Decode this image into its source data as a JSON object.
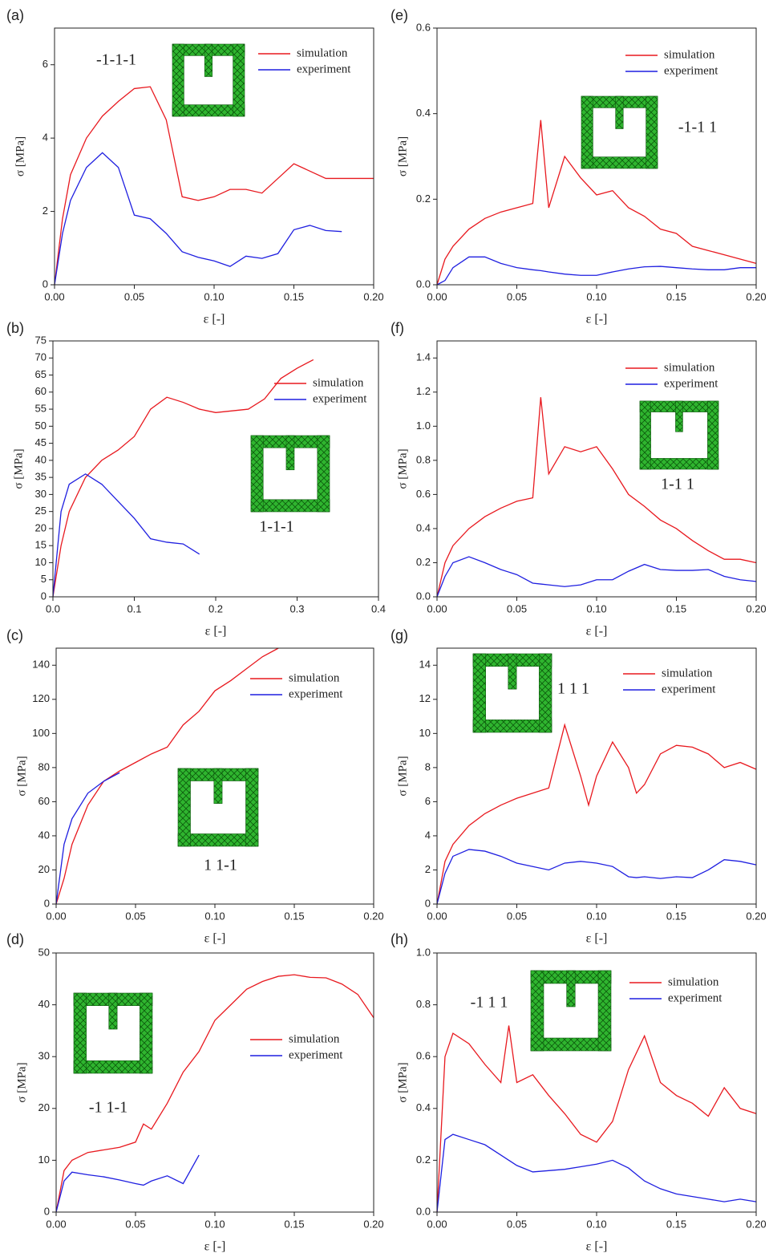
{
  "chart_data": [
    {
      "type": "line",
      "label": "(a)",
      "annotation": "-1-1-1",
      "x_label": "ε [-]",
      "y_label": "σ [MPa]",
      "x": [
        0,
        0.005,
        0.01,
        0.02,
        0.03,
        0.04,
        0.05,
        0.06,
        0.07,
        0.08,
        0.09,
        0.1,
        0.11,
        0.12,
        0.13,
        0.14,
        0.15,
        0.16,
        0.17,
        0.18,
        0.19,
        0.2
      ],
      "series": [
        {
          "name": "simulation",
          "color": "#e8191f",
          "values": [
            0,
            1.8,
            3.0,
            4.0,
            4.6,
            5.0,
            5.35,
            5.4,
            4.5,
            2.4,
            2.3,
            2.4,
            2.6,
            2.6,
            2.5,
            2.9,
            3.3,
            3.1,
            2.9,
            2.9,
            2.9,
            2.9
          ]
        },
        {
          "name": "experiment",
          "color": "#1f1fe0",
          "values": [
            0,
            1.4,
            2.3,
            3.2,
            3.6,
            3.2,
            1.9,
            1.8,
            1.4,
            0.9,
            0.75,
            0.65,
            0.5,
            0.78,
            0.72,
            0.85,
            1.5,
            1.62,
            1.48,
            1.45,
            null,
            null
          ]
        }
      ],
      "xlim": [
        0,
        0.2
      ],
      "xticks": [
        {
          "value": 0,
          "label": "0.00"
        },
        0.05,
        {
          "value": 0.1,
          "label": "0.10"
        },
        0.15,
        {
          "value": 0.2,
          "label": "0.20"
        }
      ],
      "ylim": [
        0,
        7
      ],
      "yticks": [
        0,
        2,
        4,
        6
      ]
    },
    {
      "type": "line",
      "label": "(b)",
      "annotation": "1-1-1",
      "x_label": "ε [-]",
      "y_label": "σ [MPa]",
      "x": [
        0,
        0.01,
        0.02,
        0.04,
        0.06,
        0.08,
        0.1,
        0.12,
        0.14,
        0.16,
        0.18,
        0.2,
        0.22,
        0.24,
        0.26,
        0.28,
        0.3,
        0.32,
        0.34,
        0.36,
        0.38,
        0.4
      ],
      "series": [
        {
          "name": "simulation",
          "color": "#e8191f",
          "values": [
            0,
            15,
            25,
            35,
            40,
            43,
            47,
            55,
            58.5,
            57,
            55,
            54,
            54.5,
            55,
            58,
            64,
            67,
            69.5,
            null,
            null,
            null,
            null
          ]
        },
        {
          "name": "experiment",
          "color": "#1f1fe0",
          "values": [
            0,
            25,
            33,
            36,
            33,
            28,
            23,
            17,
            16,
            15.5,
            12.5,
            null,
            null,
            null,
            null,
            null,
            null,
            null,
            null,
            null,
            null,
            null
          ]
        }
      ],
      "xlim": [
        0,
        0.4
      ],
      "xticks": [
        {
          "value": 0,
          "label": "0.0"
        },
        0.1,
        0.2,
        0.3,
        0.4
      ],
      "ylim": [
        0,
        75
      ],
      "yticks": [
        0,
        5,
        10,
        15,
        20,
        25,
        30,
        35,
        40,
        45,
        50,
        55,
        60,
        65,
        70,
        75
      ]
    },
    {
      "type": "line",
      "label": "(c)",
      "annotation": "1 1-1",
      "x_label": "ε [-]",
      "y_label": "σ [MPa]",
      "x": [
        0,
        0.005,
        0.01,
        0.02,
        0.03,
        0.04,
        0.05,
        0.06,
        0.07,
        0.08,
        0.09,
        0.1,
        0.11,
        0.12,
        0.13,
        0.14,
        0.15,
        0.16,
        0.17,
        0.18,
        0.19,
        0.2
      ],
      "series": [
        {
          "name": "simulation",
          "color": "#e8191f",
          "values": [
            0,
            15,
            35,
            58,
            72,
            78,
            83,
            88,
            92,
            105,
            113,
            125,
            131,
            138,
            145,
            150,
            null,
            null,
            null,
            null,
            null,
            null
          ]
        },
        {
          "name": "experiment",
          "color": "#1f1fe0",
          "values": [
            0,
            35,
            50,
            65,
            72,
            77,
            null,
            null,
            null,
            null,
            null,
            null,
            null,
            null,
            null,
            null,
            null,
            null,
            null,
            null,
            null,
            null
          ]
        }
      ],
      "xlim": [
        0,
        0.2
      ],
      "xticks": [
        {
          "value": 0,
          "label": "0.00"
        },
        0.05,
        {
          "value": 0.1,
          "label": "0.10"
        },
        0.15,
        {
          "value": 0.2,
          "label": "0.20"
        }
      ],
      "ylim": [
        0,
        150
      ],
      "yticks": [
        0,
        20,
        40,
        60,
        80,
        100,
        120,
        140
      ]
    },
    {
      "type": "line",
      "label": "(d)",
      "annotation": "-1 1-1",
      "x_label": "ε [-]",
      "y_label": "σ [MPa]",
      "x": [
        0,
        0.005,
        0.01,
        0.02,
        0.03,
        0.04,
        0.05,
        0.055,
        0.06,
        0.07,
        0.08,
        0.09,
        0.1,
        0.11,
        0.12,
        0.13,
        0.14,
        0.15,
        0.16,
        0.17,
        0.18,
        0.19,
        0.2
      ],
      "series": [
        {
          "name": "simulation",
          "color": "#e8191f",
          "values": [
            0,
            8,
            10,
            11.5,
            12,
            12.5,
            13.5,
            17,
            16,
            21,
            27,
            31,
            37,
            40,
            43,
            44.5,
            45.5,
            45.8,
            45.3,
            45.2,
            44,
            42,
            37.5
          ]
        },
        {
          "name": "experiment",
          "color": "#1f1fe0",
          "values": [
            0,
            6,
            7.7,
            7.2,
            6.8,
            6.2,
            5.5,
            5.2,
            6,
            7,
            5.5,
            11,
            null,
            null,
            null,
            null,
            null,
            null,
            null,
            null,
            null,
            null,
            null
          ]
        }
      ],
      "xlim": [
        0,
        0.2
      ],
      "xticks": [
        {
          "value": 0,
          "label": "0.00"
        },
        0.05,
        {
          "value": 0.1,
          "label": "0.10"
        },
        0.15,
        {
          "value": 0.2,
          "label": "0.20"
        }
      ],
      "ylim": [
        0,
        50
      ],
      "yticks": [
        0,
        10,
        20,
        30,
        40,
        50
      ]
    },
    {
      "type": "line",
      "label": "(e)",
      "annotation": "-1-1 1",
      "x_label": "ε [-]",
      "y_label": "σ [MPa]",
      "x": [
        0,
        0.005,
        0.01,
        0.02,
        0.03,
        0.04,
        0.05,
        0.06,
        0.065,
        0.07,
        0.08,
        0.09,
        0.1,
        0.11,
        0.12,
        0.13,
        0.14,
        0.15,
        0.16,
        0.17,
        0.18,
        0.19,
        0.2
      ],
      "series": [
        {
          "name": "simulation",
          "color": "#e8191f",
          "values": [
            0,
            0.06,
            0.09,
            0.13,
            0.155,
            0.17,
            0.18,
            0.19,
            0.385,
            0.18,
            0.3,
            0.25,
            0.21,
            0.22,
            0.18,
            0.16,
            0.13,
            0.12,
            0.09,
            0.08,
            0.07,
            0.06,
            0.05
          ]
        },
        {
          "name": "experiment",
          "color": "#1f1fe0",
          "values": [
            0,
            0.01,
            0.04,
            0.065,
            0.065,
            0.05,
            0.04,
            0.035,
            0.033,
            0.03,
            0.025,
            0.022,
            0.022,
            0.03,
            0.037,
            0.042,
            0.043,
            0.04,
            0.037,
            0.035,
            0.035,
            0.04,
            0.04
          ]
        }
      ],
      "xlim": [
        0,
        0.2
      ],
      "xticks": [
        {
          "value": 0,
          "label": "0.00"
        },
        0.05,
        {
          "value": 0.1,
          "label": "0.10"
        },
        0.15,
        {
          "value": 0.2,
          "label": "0.20"
        }
      ],
      "ylim": [
        0,
        0.6
      ],
      "yticks": [
        {
          "value": 0,
          "label": "0.0"
        },
        0.2,
        0.4,
        0.6
      ]
    },
    {
      "type": "line",
      "label": "(f)",
      "annotation": "1-1 1",
      "x_label": "ε [-]",
      "y_label": "σ [MPa]",
      "x": [
        0,
        0.005,
        0.01,
        0.02,
        0.03,
        0.04,
        0.05,
        0.06,
        0.065,
        0.07,
        0.08,
        0.09,
        0.1,
        0.11,
        0.12,
        0.13,
        0.14,
        0.15,
        0.16,
        0.17,
        0.18,
        0.19,
        0.2
      ],
      "series": [
        {
          "name": "simulation",
          "color": "#e8191f",
          "values": [
            0,
            0.2,
            0.3,
            0.4,
            0.47,
            0.52,
            0.56,
            0.58,
            1.17,
            0.72,
            0.88,
            0.85,
            0.88,
            0.75,
            0.6,
            0.53,
            0.45,
            0.4,
            0.33,
            0.27,
            0.22,
            0.22,
            0.2
          ]
        },
        {
          "name": "experiment",
          "color": "#1f1fe0",
          "values": [
            0,
            0.12,
            0.2,
            0.235,
            0.2,
            0.16,
            0.13,
            0.08,
            0.075,
            0.07,
            0.06,
            0.07,
            0.1,
            0.1,
            0.15,
            0.19,
            0.16,
            0.155,
            0.155,
            0.16,
            0.12,
            0.1,
            0.09
          ]
        }
      ],
      "xlim": [
        0,
        0.2
      ],
      "xticks": [
        {
          "value": 0,
          "label": "0.00"
        },
        0.05,
        {
          "value": 0.1,
          "label": "0.10"
        },
        0.15,
        {
          "value": 0.2,
          "label": "0.20"
        }
      ],
      "ylim": [
        0,
        1.5
      ],
      "yticks": [
        {
          "value": 0,
          "label": "0.0"
        },
        0.2,
        0.4,
        0.6,
        0.8,
        {
          "value": 1,
          "label": "1.0"
        },
        1.2,
        1.4
      ]
    },
    {
      "type": "line",
      "label": "(g)",
      "annotation": "1 1 1",
      "x_label": "ε [-]",
      "y_label": "σ [MPa]",
      "x": [
        0,
        0.005,
        0.01,
        0.02,
        0.03,
        0.04,
        0.05,
        0.06,
        0.07,
        0.08,
        0.09,
        0.095,
        0.1,
        0.11,
        0.12,
        0.125,
        0.13,
        0.14,
        0.15,
        0.16,
        0.17,
        0.18,
        0.19,
        0.2
      ],
      "series": [
        {
          "name": "simulation",
          "color": "#e8191f",
          "values": [
            0,
            2.5,
            3.5,
            4.6,
            5.3,
            5.8,
            6.2,
            6.5,
            6.8,
            10.5,
            7.5,
            5.8,
            7.5,
            9.5,
            8,
            6.5,
            7,
            8.8,
            9.3,
            9.2,
            8.8,
            8,
            8.3,
            7.9
          ]
        },
        {
          "name": "experiment",
          "color": "#1f1fe0",
          "values": [
            0,
            1.8,
            2.8,
            3.2,
            3.1,
            2.8,
            2.4,
            2.2,
            2.0,
            2.4,
            2.5,
            2.45,
            2.4,
            2.2,
            1.6,
            1.55,
            1.6,
            1.5,
            1.6,
            1.55,
            2.0,
            2.6,
            2.5,
            2.3
          ]
        }
      ],
      "xlim": [
        0,
        0.2
      ],
      "xticks": [
        {
          "value": 0,
          "label": "0.00"
        },
        0.05,
        {
          "value": 0.1,
          "label": "0.10"
        },
        0.15,
        {
          "value": 0.2,
          "label": "0.20"
        }
      ],
      "ylim": [
        0,
        15
      ],
      "yticks": [
        0,
        2,
        4,
        6,
        8,
        10,
        12,
        14
      ]
    },
    {
      "type": "line",
      "label": "(h)",
      "annotation": "-1 1 1",
      "x_label": "ε [-]",
      "y_label": "σ [MPa]",
      "x": [
        0,
        0.005,
        0.01,
        0.02,
        0.03,
        0.04,
        0.045,
        0.05,
        0.06,
        0.07,
        0.08,
        0.09,
        0.1,
        0.11,
        0.12,
        0.13,
        0.14,
        0.15,
        0.16,
        0.17,
        0.18,
        0.19,
        0.2
      ],
      "series": [
        {
          "name": "simulation",
          "color": "#e8191f",
          "values": [
            0,
            0.6,
            0.69,
            0.65,
            0.57,
            0.5,
            0.72,
            0.5,
            0.53,
            0.45,
            0.38,
            0.3,
            0.27,
            0.35,
            0.55,
            0.68,
            0.5,
            0.45,
            0.42,
            0.37,
            0.48,
            0.4,
            0.38
          ]
        },
        {
          "name": "experiment",
          "color": "#1f1fe0",
          "values": [
            0,
            0.28,
            0.3,
            0.28,
            0.26,
            0.22,
            0.2,
            0.18,
            0.155,
            0.16,
            0.165,
            0.175,
            0.185,
            0.2,
            0.17,
            0.12,
            0.09,
            0.07,
            0.06,
            0.05,
            0.04,
            0.05,
            0.04
          ]
        }
      ],
      "xlim": [
        0,
        0.2
      ],
      "xticks": [
        {
          "value": 0,
          "label": "0.00"
        },
        0.05,
        {
          "value": 0.1,
          "label": "0.10"
        },
        0.15,
        {
          "value": 0.2,
          "label": "0.20"
        }
      ],
      "ylim": [
        0,
        1
      ],
      "yticks": [
        {
          "value": 0,
          "label": "0.0"
        },
        0.2,
        0.4,
        0.6,
        0.8,
        {
          "value": 1,
          "label": "1.0"
        }
      ]
    }
  ]
}
